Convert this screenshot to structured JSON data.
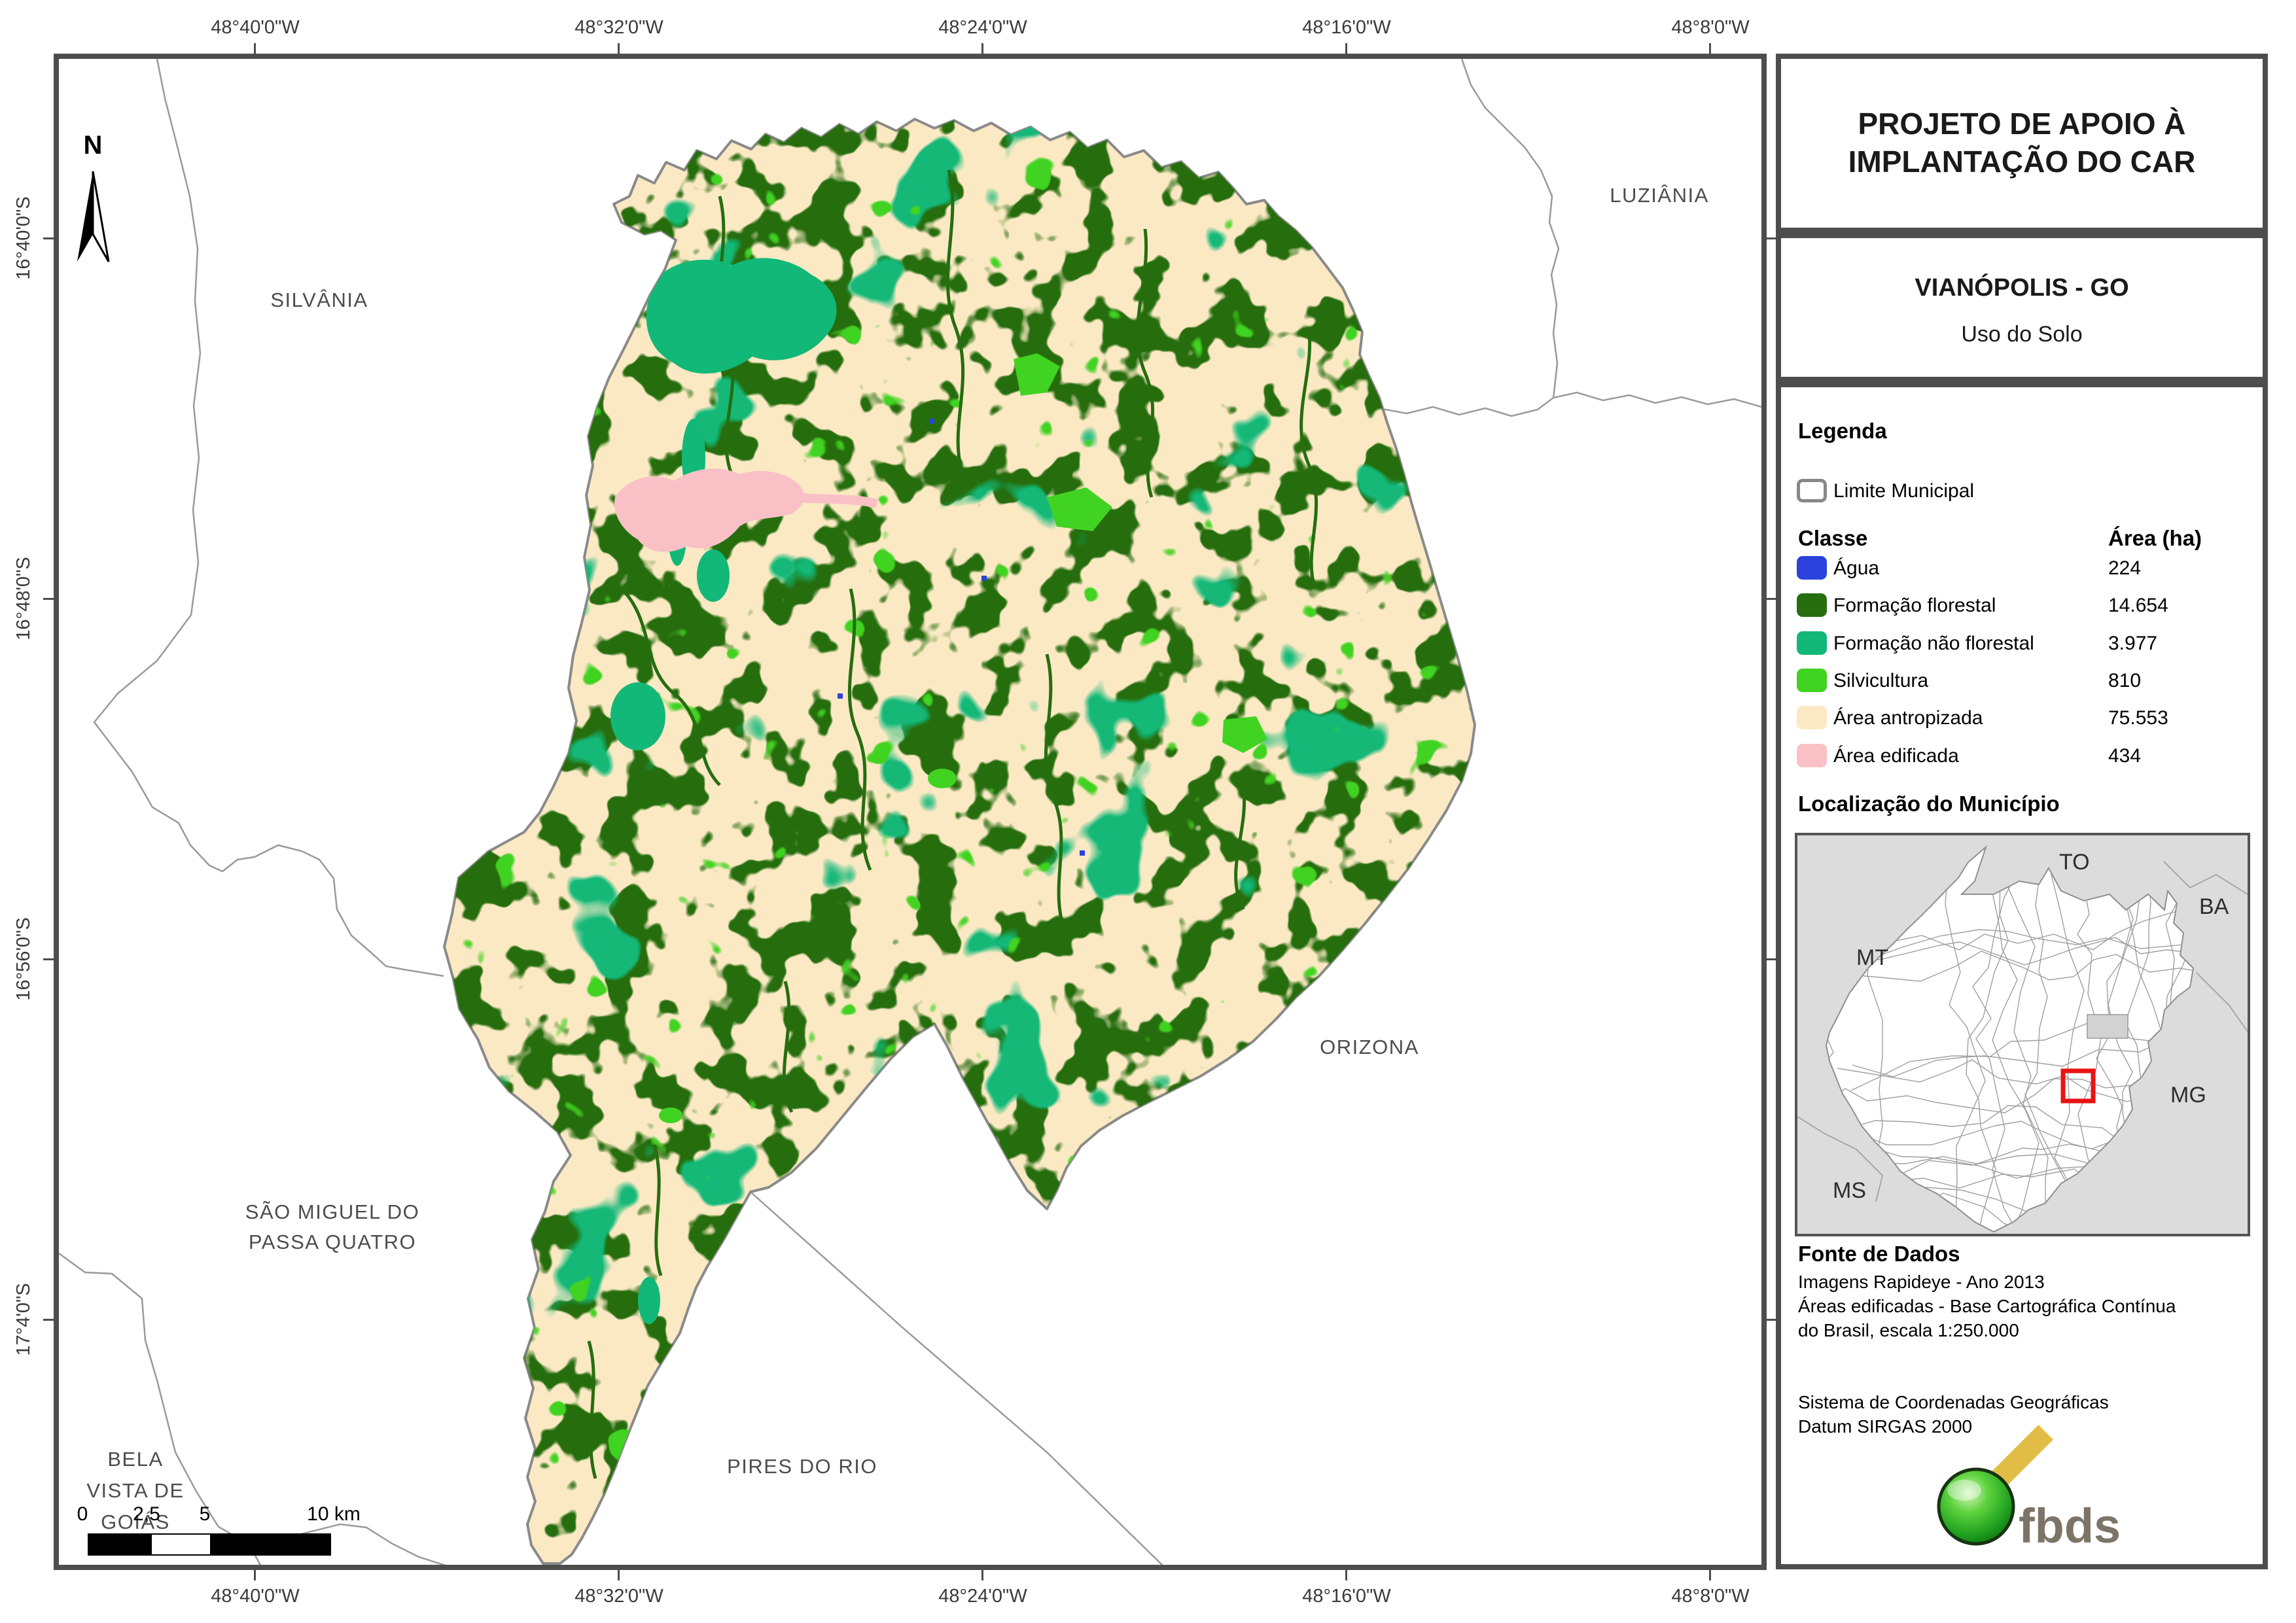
{
  "panel": {
    "title": {
      "line1": "PROJETO DE APOIO À",
      "line2": "IMPLANTAÇÃO DO CAR"
    },
    "subtitle": {
      "municipality": "VIANÓPOLIS - GO",
      "theme": "Uso do Solo"
    },
    "legend": {
      "header": "Legenda",
      "limite_label": "Limite Municipal",
      "columns": {
        "classe": "Classe",
        "area": "Área (ha)"
      },
      "items": [
        {
          "label": "Água",
          "area": "224",
          "color": "#2b43dc"
        },
        {
          "label": "Formação florestal",
          "area": "14.654",
          "color": "#266e10"
        },
        {
          "label": "Formação não florestal",
          "area": "3.977",
          "color": "#12b878"
        },
        {
          "label": "Silvicultura",
          "area": "810",
          "color": "#41d321"
        },
        {
          "label": "Área antropizada",
          "area": "75.553",
          "color": "#fbe9c4"
        },
        {
          "label": "Área edificada",
          "area": "434",
          "color": "#f9c0c6"
        }
      ]
    },
    "location": {
      "header": "Localização do Município",
      "labels": {
        "to": "TO",
        "ba": "BA",
        "mt": "MT",
        "mg": "MG",
        "ms": "MS"
      }
    },
    "source": {
      "header": "Fonte de Dados",
      "lines": [
        "Imagens Rapideye - Ano 2013",
        "Áreas edificadas - Base Cartográfica Contínua",
        "do Brasil, escala 1:250.000"
      ],
      "lines2": [
        "Sistema de Coordenadas Geográficas",
        "Datum SIRGAS 2000"
      ]
    },
    "logo": {
      "text": "fbds"
    }
  },
  "map": {
    "north": "N",
    "limite_color": "#8a8a8a",
    "longitude_labels": [
      "48°40'0\"W",
      "48°32'0\"W",
      "48°24'0\"W",
      "48°16'0\"W",
      "48°8'0\"W"
    ],
    "latitude_labels": [
      "16°40'0\"S",
      "16°48'0\"S",
      "16°56'0\"S",
      "17°4'0\"S"
    ],
    "neighbors": {
      "silvania": "SILVÂNIA",
      "luziania": "LUZIÂNIA",
      "orizona": "ORIZONA",
      "sao_miguel_line1": "SÃO MIGUEL DO",
      "sao_miguel_line2": "PASSA QUATRO",
      "pires": "PIRES DO RIO",
      "bela_line1": "BELA",
      "bela_line2": "VISTA DE",
      "bela_line3": "GOIÁS"
    },
    "scalebar": {
      "labels": [
        "0",
        "2,5",
        "5",
        "10 km"
      ]
    }
  }
}
